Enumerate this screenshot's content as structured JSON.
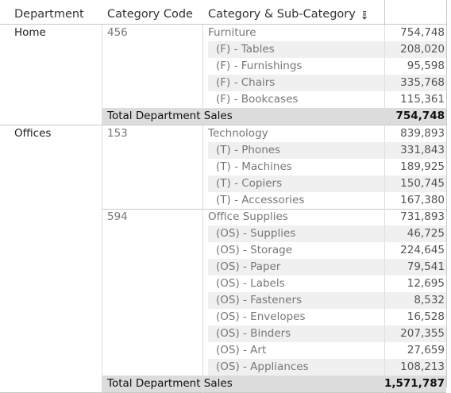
{
  "headers": {
    "department": "Department",
    "category_code": "Category Code",
    "category": "Category & Sub-Category"
  },
  "groups": [
    {
      "department": "Home",
      "blocks": [
        {
          "code": "456",
          "category": "Furniture",
          "category_value": "754,748",
          "subs": [
            {
              "label": "(F) - Tables",
              "value": "208,020"
            },
            {
              "label": "(F) - Furnishings",
              "value": "95,598"
            },
            {
              "label": "(F) - Chairs",
              "value": "335,768"
            },
            {
              "label": "(F) - Bookcases",
              "value": "115,361"
            }
          ]
        }
      ],
      "total_label": "Total Department Sales",
      "total_value": "754,748"
    },
    {
      "department": "Offices",
      "blocks": [
        {
          "code": "153",
          "category": "Technology",
          "category_value": "839,893",
          "subs": [
            {
              "label": "(T) - Phones",
              "value": "331,843"
            },
            {
              "label": "(T) - Machines",
              "value": "189,925"
            },
            {
              "label": "(T) - Copiers",
              "value": "150,745"
            },
            {
              "label": "(T) - Accessories",
              "value": "167,380"
            }
          ]
        },
        {
          "code": "594",
          "category": "Office Supplies",
          "category_value": "731,893",
          "subs": [
            {
              "label": "(OS) - Supplies",
              "value": "46,725"
            },
            {
              "label": "(OS) - Storage",
              "value": "224,645"
            },
            {
              "label": "(OS) - Paper",
              "value": "79,541"
            },
            {
              "label": "(OS) - Labels",
              "value": "12,695"
            },
            {
              "label": "(OS) - Fasteners",
              "value": "8,532"
            },
            {
              "label": "(OS) - Envelopes",
              "value": "16,528"
            },
            {
              "label": "(OS) - Binders",
              "value": "207,355"
            },
            {
              "label": "(OS) - Art",
              "value": "27,659"
            },
            {
              "label": "(OS) - Appliances",
              "value": "108,213"
            }
          ]
        }
      ],
      "total_label": "Total Department Sales",
      "total_value": "1,571,787"
    }
  ],
  "icons": {
    "sort": "sort-descending-icon"
  },
  "colors": {
    "band": "#f0f0f0",
    "total_band": "#dcdcdc",
    "rule": "#c8c8c8"
  }
}
